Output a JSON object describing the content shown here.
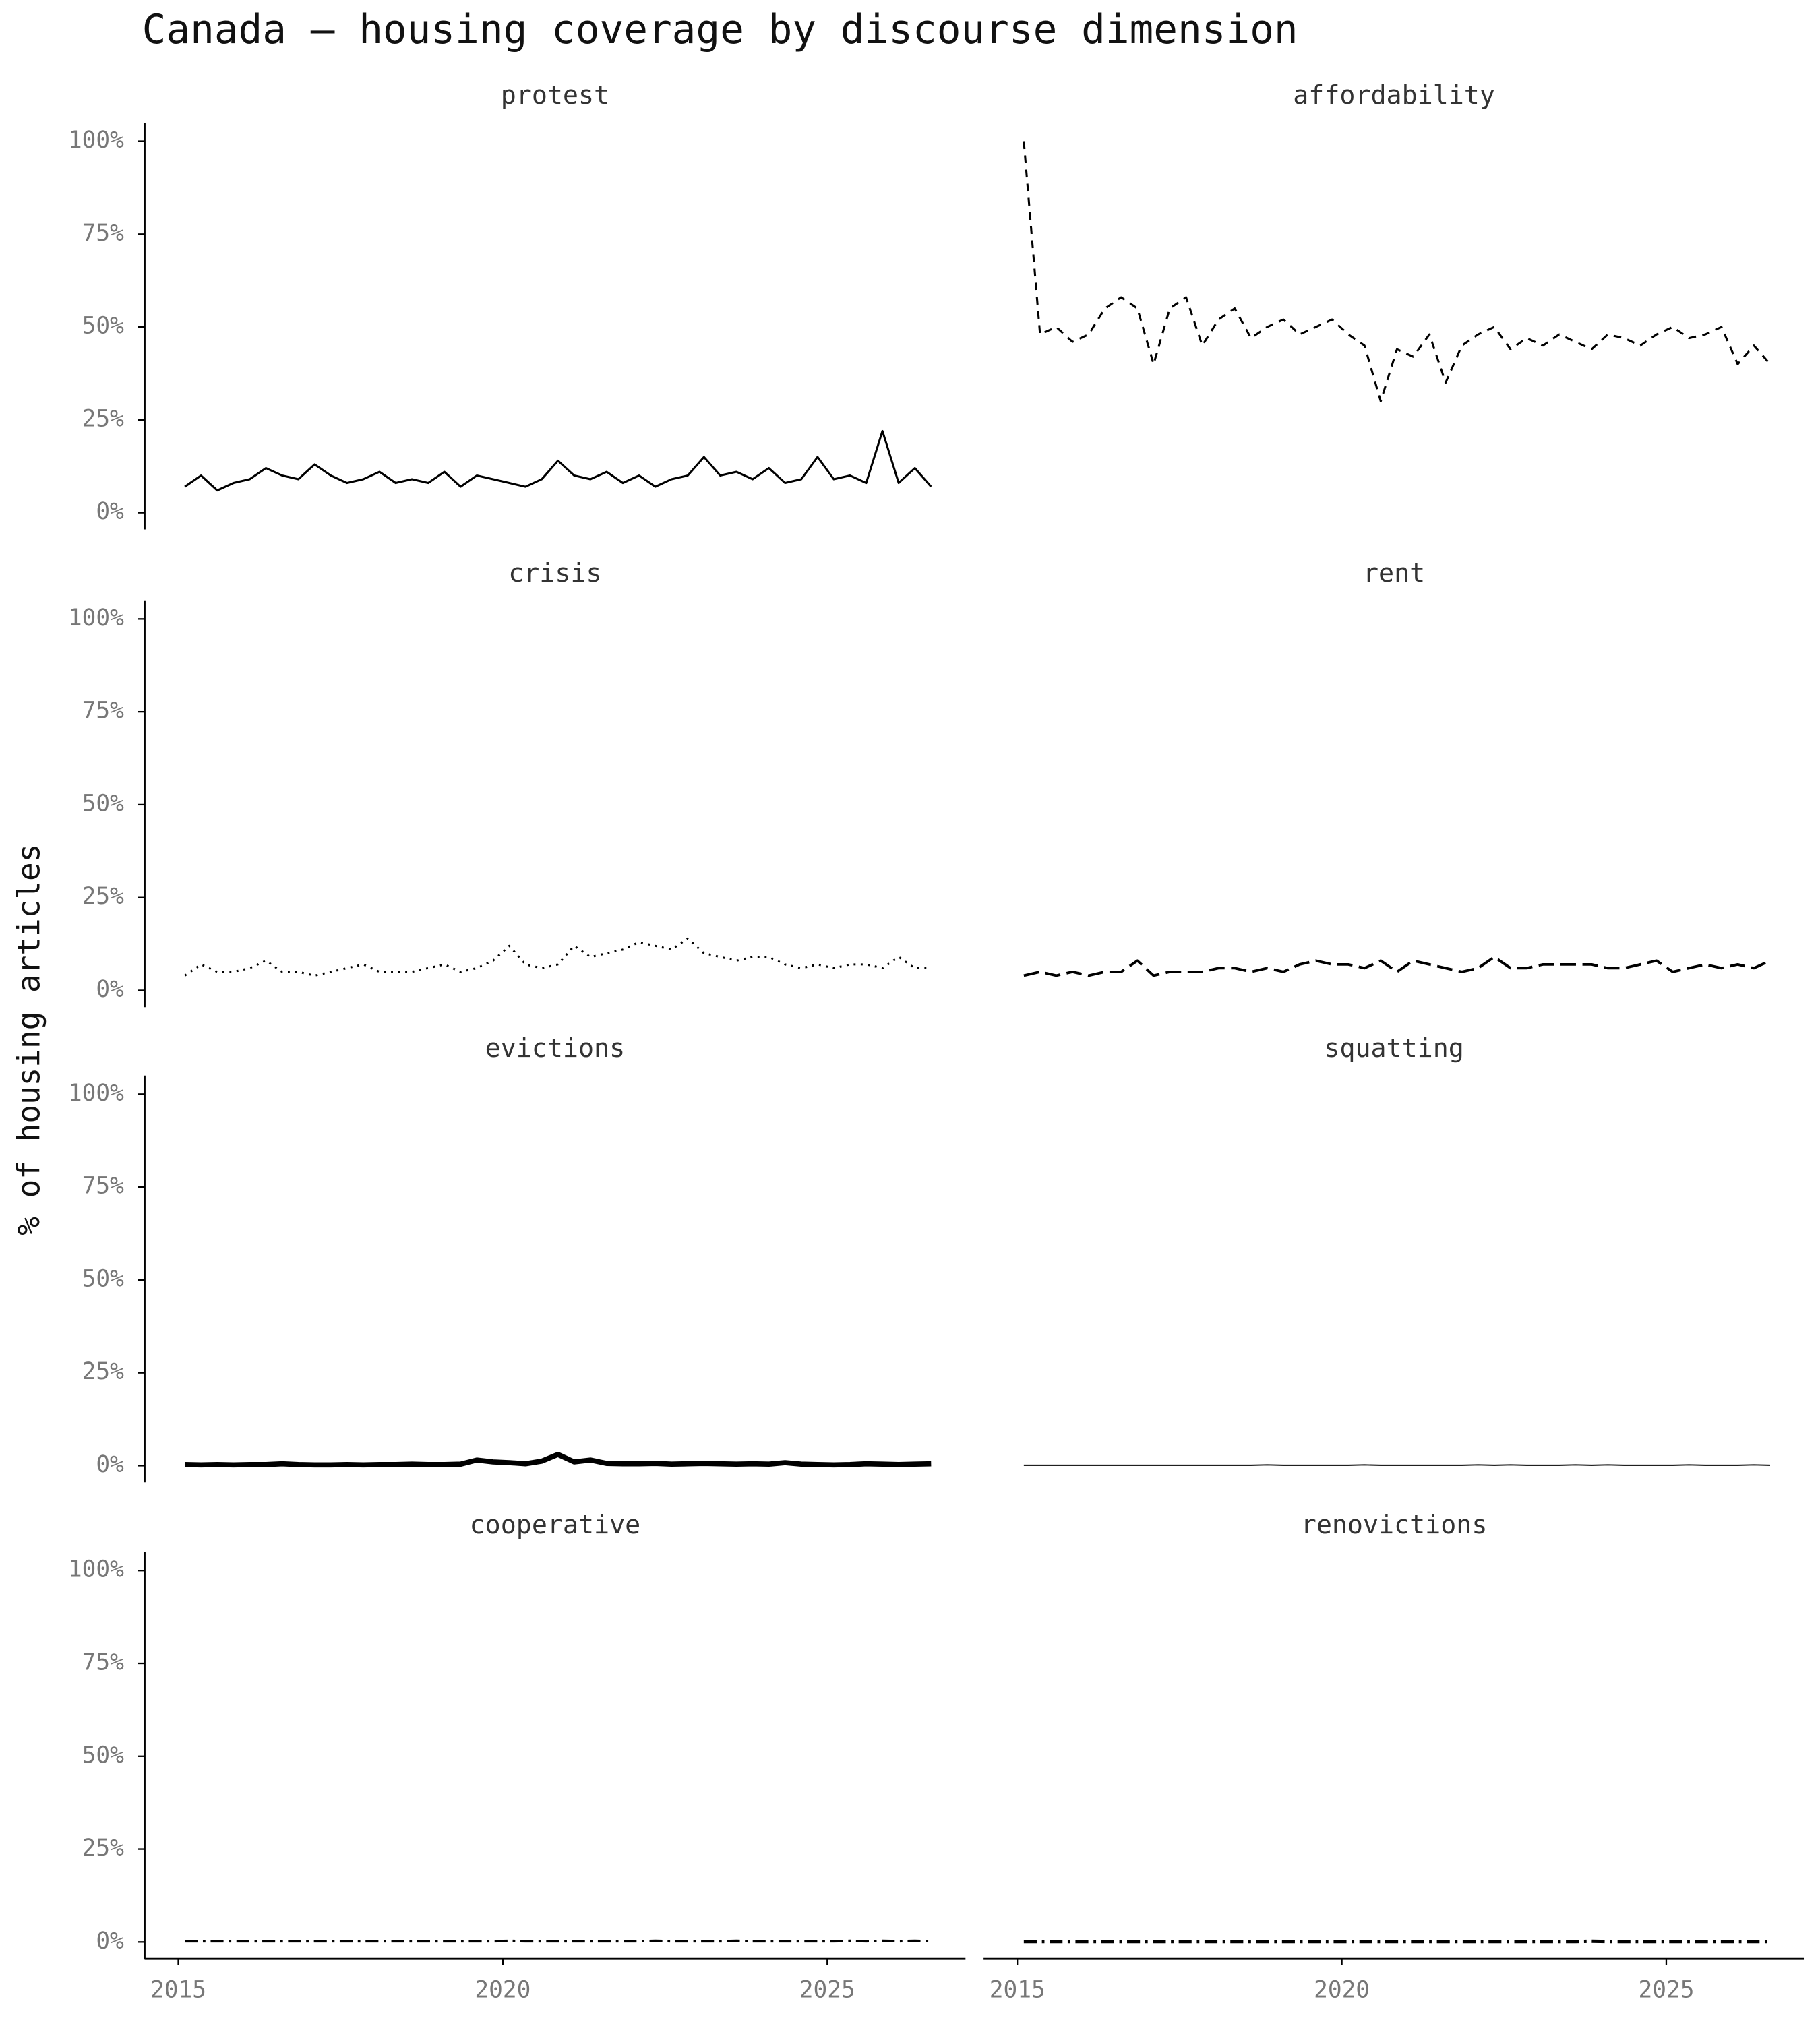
{
  "title": "Canada — housing coverage by discourse dimension",
  "y_label": "% of housing articles",
  "chart_data": [
    {
      "type": "line",
      "title": "protest",
      "linestyle": "solid",
      "linewidth": 1.6,
      "color": "#000",
      "x": [
        2015.1,
        2015.35,
        2015.6,
        2015.85,
        2016.1,
        2016.35,
        2016.6,
        2016.85,
        2017.1,
        2017.35,
        2017.6,
        2017.85,
        2018.1,
        2018.35,
        2018.6,
        2018.85,
        2019.1,
        2019.35,
        2019.6,
        2019.85,
        2020.1,
        2020.35,
        2020.6,
        2020.85,
        2021.1,
        2021.35,
        2021.6,
        2021.85,
        2022.1,
        2022.35,
        2022.6,
        2022.85,
        2023.1,
        2023.35,
        2023.6,
        2023.85,
        2024.1,
        2024.35,
        2024.6,
        2024.85,
        2025.1,
        2025.35,
        2025.6,
        2025.85,
        2026.1,
        2026.35,
        2026.6
      ],
      "values": [
        7,
        10,
        6,
        8,
        9,
        12,
        10,
        9,
        13,
        10,
        8,
        9,
        11,
        8,
        9,
        8,
        11,
        7,
        10,
        9,
        8,
        7,
        9,
        14,
        10,
        9,
        11,
        8,
        10,
        7,
        9,
        10,
        15,
        10,
        11,
        9,
        12,
        8,
        9,
        15,
        9,
        10,
        8,
        22,
        8,
        12,
        7
      ],
      "xlim": [
        2014.48,
        2027.13
      ],
      "ylim": [
        -4.5,
        105
      ],
      "yticks": [
        {
          "value": 0,
          "label": "0%"
        },
        {
          "value": 25,
          "label": "25%"
        },
        {
          "value": 50,
          "label": "50%"
        },
        {
          "value": 75,
          "label": "75%"
        },
        {
          "value": 100,
          "label": "100%"
        }
      ]
    },
    {
      "type": "line",
      "title": "affordability",
      "linestyle": "dashed",
      "linewidth": 1.6,
      "color": "#000",
      "x": [
        2015.1,
        2015.35,
        2015.6,
        2015.85,
        2016.1,
        2016.35,
        2016.6,
        2016.85,
        2017.1,
        2017.35,
        2017.6,
        2017.85,
        2018.1,
        2018.35,
        2018.6,
        2018.85,
        2019.1,
        2019.35,
        2019.6,
        2019.85,
        2020.1,
        2020.35,
        2020.6,
        2020.85,
        2021.1,
        2021.35,
        2021.6,
        2021.85,
        2022.1,
        2022.35,
        2022.6,
        2022.85,
        2023.1,
        2023.35,
        2023.6,
        2023.85,
        2024.1,
        2024.35,
        2024.6,
        2024.85,
        2025.1,
        2025.35,
        2025.6,
        2025.85,
        2026.1,
        2026.35,
        2026.6
      ],
      "values": [
        100,
        48,
        50,
        46,
        48,
        55,
        58,
        55,
        40,
        55,
        58,
        45,
        52,
        55,
        47,
        50,
        52,
        48,
        50,
        52,
        48,
        45,
        30,
        44,
        42,
        48,
        35,
        45,
        48,
        50,
        44,
        47,
        45,
        48,
        46,
        44,
        48,
        47,
        45,
        48,
        50,
        47,
        48,
        50,
        40,
        45,
        40
      ],
      "xlim": [
        2014.48,
        2027.13
      ],
      "ylim": [
        -4.5,
        105
      ]
    },
    {
      "type": "line",
      "title": "crisis",
      "linestyle": "dotted",
      "linewidth": 1.6,
      "color": "#000",
      "x": [
        2015.1,
        2015.35,
        2015.6,
        2015.85,
        2016.1,
        2016.35,
        2016.6,
        2016.85,
        2017.1,
        2017.35,
        2017.6,
        2017.85,
        2018.1,
        2018.35,
        2018.6,
        2018.85,
        2019.1,
        2019.35,
        2019.6,
        2019.85,
        2020.1,
        2020.35,
        2020.6,
        2020.85,
        2021.1,
        2021.35,
        2021.6,
        2021.85,
        2022.1,
        2022.35,
        2022.6,
        2022.85,
        2023.1,
        2023.35,
        2023.6,
        2023.85,
        2024.1,
        2024.35,
        2024.6,
        2024.85,
        2025.1,
        2025.35,
        2025.6,
        2025.85,
        2026.1,
        2026.35,
        2026.6
      ],
      "values": [
        4,
        7,
        5,
        5,
        6,
        8,
        5,
        5,
        4,
        5,
        6,
        7,
        5,
        5,
        5,
        6,
        7,
        5,
        6,
        8,
        12,
        7,
        6,
        7,
        12,
        9,
        10,
        11,
        13,
        12,
        11,
        14,
        10,
        9,
        8,
        9,
        9,
        7,
        6,
        7,
        6,
        7,
        7,
        6,
        9,
        6,
        6
      ],
      "xlim": [
        2014.48,
        2027.13
      ],
      "ylim": [
        -4.5,
        105
      ],
      "yticks": [
        {
          "value": 0,
          "label": "0%"
        },
        {
          "value": 25,
          "label": "25%"
        },
        {
          "value": 50,
          "label": "50%"
        },
        {
          "value": 75,
          "label": "75%"
        },
        {
          "value": 100,
          "label": "100%"
        }
      ]
    },
    {
      "type": "line",
      "title": "rent",
      "linestyle": "longdash",
      "linewidth": 2,
      "color": "#000",
      "x": [
        2015.1,
        2015.35,
        2015.6,
        2015.85,
        2016.1,
        2016.35,
        2016.6,
        2016.85,
        2017.1,
        2017.35,
        2017.6,
        2017.85,
        2018.1,
        2018.35,
        2018.6,
        2018.85,
        2019.1,
        2019.35,
        2019.6,
        2019.85,
        2020.1,
        2020.35,
        2020.6,
        2020.85,
        2021.1,
        2021.35,
        2021.6,
        2021.85,
        2022.1,
        2022.35,
        2022.6,
        2022.85,
        2023.1,
        2023.35,
        2023.6,
        2023.85,
        2024.1,
        2024.35,
        2024.6,
        2024.85,
        2025.1,
        2025.35,
        2025.6,
        2025.85,
        2026.1,
        2026.35,
        2026.6
      ],
      "values": [
        4,
        5,
        4,
        5,
        4,
        5,
        5,
        8,
        4,
        5,
        5,
        5,
        6,
        6,
        5,
        6,
        5,
        7,
        8,
        7,
        7,
        6,
        8,
        5,
        8,
        7,
        6,
        5,
        6,
        9,
        6,
        6,
        7,
        7,
        7,
        7,
        6,
        6,
        7,
        8,
        5,
        6,
        7,
        6,
        7,
        6,
        8
      ],
      "xlim": [
        2014.48,
        2027.13
      ],
      "ylim": [
        -4.5,
        105
      ]
    },
    {
      "type": "line",
      "title": "evictions",
      "linestyle": "solid",
      "linewidth": 4,
      "color": "#000",
      "x": [
        2015.1,
        2015.35,
        2015.6,
        2015.85,
        2016.1,
        2016.35,
        2016.6,
        2016.85,
        2017.1,
        2017.35,
        2017.6,
        2017.85,
        2018.1,
        2018.35,
        2018.6,
        2018.85,
        2019.1,
        2019.35,
        2019.6,
        2019.85,
        2020.1,
        2020.35,
        2020.6,
        2020.85,
        2021.1,
        2021.35,
        2021.6,
        2021.85,
        2022.1,
        2022.35,
        2022.6,
        2022.85,
        2023.1,
        2023.35,
        2023.6,
        2023.85,
        2024.1,
        2024.35,
        2024.6,
        2024.85,
        2025.1,
        2025.35,
        2025.6,
        2025.85,
        2026.1,
        2026.35,
        2026.6
      ],
      "values": [
        0.3,
        0.2,
        0.3,
        0.2,
        0.3,
        0.3,
        0.5,
        0.3,
        0.2,
        0.2,
        0.3,
        0.2,
        0.3,
        0.3,
        0.4,
        0.3,
        0.3,
        0.4,
        1.5,
        1,
        0.8,
        0.5,
        1.2,
        3,
        1,
        1.5,
        0.6,
        0.5,
        0.5,
        0.6,
        0.4,
        0.5,
        0.6,
        0.5,
        0.4,
        0.5,
        0.4,
        0.8,
        0.4,
        0.3,
        0.2,
        0.3,
        0.5,
        0.4,
        0.3,
        0.4,
        0.5
      ],
      "xlim": [
        2014.48,
        2027.13
      ],
      "ylim": [
        -4.5,
        105
      ],
      "yticks": [
        {
          "value": 0,
          "label": "0%"
        },
        {
          "value": 25,
          "label": "25%"
        },
        {
          "value": 50,
          "label": "50%"
        },
        {
          "value": 75,
          "label": "75%"
        },
        {
          "value": 100,
          "label": "100%"
        }
      ]
    },
    {
      "type": "line",
      "title": "squatting",
      "linestyle": "solid",
      "linewidth": 1,
      "color": "#000",
      "x": [
        2015.1,
        2015.35,
        2015.6,
        2015.85,
        2016.1,
        2016.35,
        2016.6,
        2016.85,
        2017.1,
        2017.35,
        2017.6,
        2017.85,
        2018.1,
        2018.35,
        2018.6,
        2018.85,
        2019.1,
        2019.35,
        2019.6,
        2019.85,
        2020.1,
        2020.35,
        2020.6,
        2020.85,
        2021.1,
        2021.35,
        2021.6,
        2021.85,
        2022.1,
        2022.35,
        2022.6,
        2022.85,
        2023.1,
        2023.35,
        2023.6,
        2023.85,
        2024.1,
        2024.35,
        2024.6,
        2024.85,
        2025.1,
        2025.35,
        2025.6,
        2025.85,
        2026.1,
        2026.35,
        2026.6
      ],
      "values": [
        0.1,
        0.1,
        0.1,
        0.1,
        0.1,
        0.1,
        0.1,
        0.1,
        0.1,
        0.1,
        0.1,
        0.1,
        0.1,
        0.1,
        0.1,
        0.2,
        0.1,
        0.1,
        0.1,
        0.1,
        0.1,
        0.2,
        0.1,
        0.1,
        0.1,
        0.1,
        0.1,
        0.1,
        0.2,
        0.1,
        0.2,
        0.1,
        0.1,
        0.1,
        0.2,
        0.1,
        0.2,
        0.1,
        0.1,
        0.1,
        0.1,
        0.2,
        0.1,
        0.1,
        0.1,
        0.2,
        0.1
      ],
      "xlim": [
        2014.48,
        2027.13
      ],
      "ylim": [
        -4.5,
        105
      ]
    },
    {
      "type": "line",
      "title": "cooperative",
      "linestyle": "dotdash",
      "linewidth": 2,
      "color": "#000",
      "x": [
        2015.1,
        2015.35,
        2015.6,
        2015.85,
        2016.1,
        2016.35,
        2016.6,
        2016.85,
        2017.1,
        2017.35,
        2017.6,
        2017.85,
        2018.1,
        2018.35,
        2018.6,
        2018.85,
        2019.1,
        2019.35,
        2019.6,
        2019.85,
        2020.1,
        2020.35,
        2020.6,
        2020.85,
        2021.1,
        2021.35,
        2021.6,
        2021.85,
        2022.1,
        2022.35,
        2022.6,
        2022.85,
        2023.1,
        2023.35,
        2023.6,
        2023.85,
        2024.1,
        2024.35,
        2024.6,
        2024.85,
        2025.1,
        2025.35,
        2025.6,
        2025.85,
        2026.1,
        2026.35,
        2026.6
      ],
      "values": [
        0.2,
        0.2,
        0.2,
        0.2,
        0.2,
        0.2,
        0.2,
        0.2,
        0.2,
        0.2,
        0.2,
        0.2,
        0.2,
        0.2,
        0.2,
        0.2,
        0.2,
        0.2,
        0.2,
        0.2,
        0.3,
        0.2,
        0.2,
        0.2,
        0.2,
        0.2,
        0.2,
        0.2,
        0.2,
        0.3,
        0.2,
        0.2,
        0.2,
        0.2,
        0.3,
        0.2,
        0.2,
        0.2,
        0.2,
        0.2,
        0.2,
        0.3,
        0.2,
        0.3,
        0.2,
        0.3,
        0.2
      ],
      "xlim": [
        2014.48,
        2027.13
      ],
      "ylim": [
        -4.5,
        105
      ],
      "xticks": [
        2015,
        2020,
        2025
      ],
      "yticks": [
        {
          "value": 0,
          "label": "0%"
        },
        {
          "value": 25,
          "label": "25%"
        },
        {
          "value": 50,
          "label": "50%"
        },
        {
          "value": 75,
          "label": "75%"
        },
        {
          "value": 100,
          "label": "100%"
        }
      ]
    },
    {
      "type": "line",
      "title": "renovictions",
      "linestyle": "dotdash",
      "linewidth": 2.6,
      "color": "#000",
      "x": [
        2015.1,
        2015.35,
        2015.6,
        2015.85,
        2016.1,
        2016.35,
        2016.6,
        2016.85,
        2017.1,
        2017.35,
        2017.6,
        2017.85,
        2018.1,
        2018.35,
        2018.6,
        2018.85,
        2019.1,
        2019.35,
        2019.6,
        2019.85,
        2020.1,
        2020.35,
        2020.6,
        2020.85,
        2021.1,
        2021.35,
        2021.6,
        2021.85,
        2022.1,
        2022.35,
        2022.6,
        2022.85,
        2023.1,
        2023.35,
        2023.6,
        2023.85,
        2024.1,
        2024.35,
        2024.6,
        2024.85,
        2025.1,
        2025.35,
        2025.6,
        2025.85,
        2026.1,
        2026.35,
        2026.6
      ],
      "values": [
        0.1,
        0.1,
        0.1,
        0.1,
        0.1,
        0.1,
        0.1,
        0.1,
        0.1,
        0.1,
        0.1,
        0.1,
        0.1,
        0.1,
        0.1,
        0.1,
        0.1,
        0.1,
        0.1,
        0.1,
        0.1,
        0.1,
        0.1,
        0.1,
        0.1,
        0.1,
        0.1,
        0.1,
        0.1,
        0.1,
        0.1,
        0.1,
        0.1,
        0.1,
        0.1,
        0.2,
        0.1,
        0.1,
        0.1,
        0.1,
        0.1,
        0.1,
        0.1,
        0.1,
        0.1,
        0.1,
        0.1
      ],
      "xlim": [
        2014.48,
        2027.13
      ],
      "ylim": [
        -4.5,
        105
      ],
      "xticks": [
        2015,
        2020,
        2025
      ]
    }
  ]
}
